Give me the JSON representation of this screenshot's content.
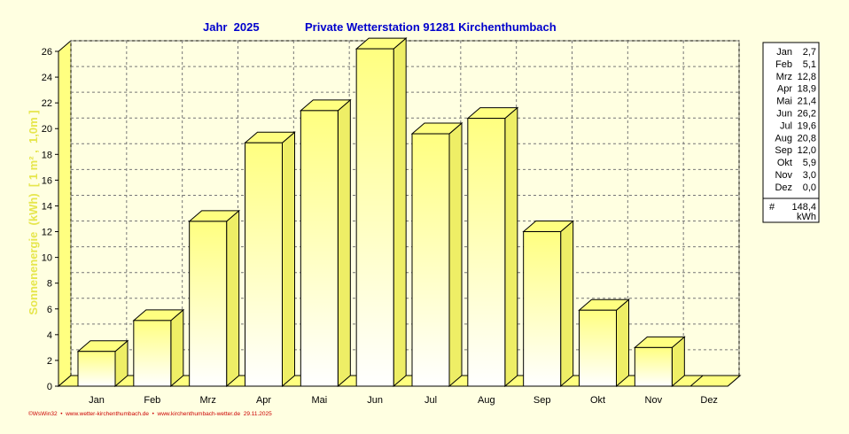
{
  "header": {
    "year_label": "Jahr  2025",
    "station_title": "Private Wetterstation 91281 Kirchenthumbach"
  },
  "footer": {
    "credit": "©WsWin32  •  www.wetter-kirchenthumbach.de  •  www.kirchenthumbach-wetter.de  29.11.2025"
  },
  "legend": {
    "total_symbol": "#",
    "total_value": "148,4",
    "total_unit": "kWh"
  },
  "colors": {
    "background": "#ffffe1",
    "bar_face_top": "#ffff80",
    "bar_face_bottom": "#ffffff",
    "bar_side": "#eeee66",
    "bar_top": "#ffff80",
    "title": "#0000cc",
    "footer": "#cc0000",
    "ylabel": "#e6e64d"
  },
  "chart_data": {
    "type": "bar",
    "title": "Private Wetterstation 91281 Kirchenthumbach",
    "ylabel": "Sonnenenergie  (kWh)  [ 1 m² ,  1,0m ]",
    "xlabel": "",
    "categories": [
      "Jan",
      "Feb",
      "Mrz",
      "Apr",
      "Mai",
      "Jun",
      "Jul",
      "Aug",
      "Sep",
      "Okt",
      "Nov",
      "Dez"
    ],
    "values": [
      2.7,
      5.1,
      12.8,
      18.9,
      21.4,
      26.2,
      19.6,
      20.8,
      12.0,
      5.9,
      3.0,
      0.0
    ],
    "legend_values": [
      "2,7",
      "5,1",
      "12,8",
      "18,9",
      "21,4",
      "26,2",
      "19,6",
      "20,8",
      "12,0",
      "5,9",
      "3,0",
      "0,0"
    ],
    "ylim": [
      0,
      26.5
    ],
    "yticks": [
      0,
      2,
      4,
      6,
      8,
      10,
      12,
      14,
      16,
      18,
      20,
      22,
      24,
      26
    ],
    "grid": true,
    "legend_position": "right"
  }
}
